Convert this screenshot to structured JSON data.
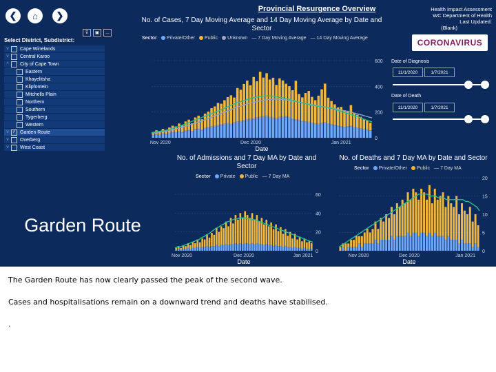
{
  "nav": {
    "back_icon": "back-arrow-icon",
    "home_icon": "home-icon",
    "forward_icon": "forward-arrow-icon",
    "back": "❮",
    "home": "⌂",
    "forward": "❯"
  },
  "header": {
    "title": "Provincial Resurgence Overview",
    "cases_title": "No. of Cases, 7 Day Moving Average and 14 Day Moving Average by Date and Sector",
    "assessment_lines": [
      "Health Impact Assessment",
      "WC Department of Health",
      "Last Updated:",
      "(Blank)"
    ],
    "logo_text": "CORONAVIRUS"
  },
  "slicer": {
    "title": "Select District, Subdistrict:",
    "filter_buttons": [
      "⊽",
      "▣",
      "…"
    ],
    "items": [
      {
        "label": "Cape Winelands",
        "level": 0,
        "checked": false,
        "expanded": false
      },
      {
        "label": "Central Karoo",
        "level": 0,
        "checked": false,
        "expanded": false
      },
      {
        "label": "City of Cape Town",
        "level": 0,
        "checked": false,
        "expanded": true
      },
      {
        "label": "Eastern",
        "level": 1,
        "checked": false
      },
      {
        "label": "Khayelitsha",
        "level": 1,
        "checked": false
      },
      {
        "label": "Klipfontein",
        "level": 1,
        "checked": false
      },
      {
        "label": "Mitchells Plain",
        "level": 1,
        "checked": false
      },
      {
        "label": "Northern",
        "level": 1,
        "checked": false
      },
      {
        "label": "Southern",
        "level": 1,
        "checked": false
      },
      {
        "label": "Tygerberg",
        "level": 1,
        "checked": false
      },
      {
        "label": "Western",
        "level": 1,
        "checked": false
      },
      {
        "label": "Garden Route",
        "level": 0,
        "checked": true,
        "expanded": false
      },
      {
        "label": "Overberg",
        "level": 0,
        "checked": false,
        "expanded": false
      },
      {
        "label": "West Coast",
        "level": 0,
        "checked": false,
        "expanded": false
      }
    ]
  },
  "selected_label": "Garden Route",
  "filters": {
    "diagnosis_label": "Date of Diagnosis",
    "diagnosis_from": "11/1/2020",
    "diagnosis_to": "1/7/2021",
    "death_label": "Date of Death",
    "death_from": "11/1/2020",
    "death_to": "1/7/2021"
  },
  "colors": {
    "background": "#0c2a5c",
    "private": "#6fa8ff",
    "public": "#f0b73a",
    "unknown": "#a3a3c2",
    "ma7": "#2bbf8e",
    "ma14": "#8aa0c8"
  },
  "chart_data": [
    {
      "type": "bar",
      "title": "No. of Cases, 7 Day Moving Average and 14 Day Moving Average by Date and Sector",
      "xlabel": "Date",
      "ylabel": "",
      "legend_title": "Sector",
      "legend": [
        "Private/Other",
        "Public",
        "Unknown",
        "7 Day Moving Average",
        "14 Day Moving Average"
      ],
      "x_ticks": [
        "Nov 2020",
        "Dec 2020",
        "Jan 2021"
      ],
      "y_ticks": [
        0,
        200,
        400,
        600
      ],
      "ylim": [
        0,
        600
      ],
      "private": [
        20,
        25,
        22,
        30,
        28,
        35,
        40,
        38,
        45,
        42,
        50,
        55,
        48,
        60,
        65,
        58,
        70,
        75,
        80,
        85,
        90,
        95,
        100,
        105,
        98,
        110,
        115,
        120,
        125,
        130,
        135,
        140,
        145,
        150,
        155,
        160,
        150,
        145,
        140,
        150,
        155,
        160,
        150,
        140,
        135,
        130,
        125,
        120,
        115,
        110,
        105,
        100,
        110,
        115,
        105,
        100,
        95,
        90,
        85,
        80,
        85,
        90,
        80,
        75,
        70,
        65,
        60,
        55
      ],
      "public": [
        20,
        30,
        25,
        35,
        30,
        40,
        50,
        45,
        60,
        50,
        70,
        80,
        60,
        90,
        100,
        80,
        110,
        120,
        140,
        150,
        170,
        160,
        180,
        200,
        220,
        190,
        260,
        240,
        280,
        300,
        260,
        320,
        280,
        350,
        300,
        330,
        290,
        310,
        260,
        300,
        280,
        250,
        240,
        220,
        300,
        200,
        180,
        220,
        240,
        200,
        180,
        220,
        260,
        300,
        200,
        180,
        160,
        140,
        150,
        130,
        120,
        160,
        110,
        100,
        90,
        80,
        70,
        60
      ],
      "unknown": [
        2,
        3,
        2,
        4,
        3,
        5,
        4,
        5,
        6,
        5,
        7,
        6,
        5,
        8,
        7,
        6,
        8,
        9,
        10,
        9,
        11,
        10,
        12,
        11,
        12,
        13,
        12,
        14,
        13,
        15,
        14,
        13,
        15,
        14,
        13,
        12,
        13,
        12,
        11,
        12,
        11,
        10,
        11,
        10,
        9,
        10,
        9,
        8,
        9,
        8,
        7,
        8,
        7,
        6,
        7,
        6,
        5,
        6,
        5,
        4,
        5,
        4,
        3,
        4,
        3,
        2,
        3,
        2
      ],
      "ma7": [
        40,
        45,
        48,
        52,
        56,
        62,
        70,
        78,
        86,
        95,
        105,
        115,
        125,
        135,
        145,
        155,
        165,
        175,
        185,
        195,
        205,
        215,
        228,
        240,
        252,
        262,
        272,
        280,
        288,
        296,
        304,
        310,
        316,
        320,
        324,
        326,
        325,
        322,
        318,
        314,
        310,
        305,
        298,
        290,
        283,
        276,
        270,
        264,
        258,
        252,
        247,
        242,
        240,
        238,
        232,
        226,
        218,
        210,
        202,
        194,
        186,
        178,
        170,
        160,
        150,
        140,
        132,
        124
      ],
      "ma14": [
        35,
        38,
        42,
        46,
        50,
        54,
        60,
        66,
        72,
        80,
        88,
        96,
        104,
        112,
        120,
        128,
        138,
        148,
        158,
        168,
        178,
        188,
        198,
        208,
        218,
        228,
        238,
        246,
        254,
        262,
        270,
        276,
        282,
        287,
        292,
        296,
        299,
        300,
        300,
        299,
        297,
        294,
        290,
        286,
        281,
        276,
        271,
        266,
        261,
        256,
        251,
        246,
        242,
        238,
        234,
        230,
        225,
        220,
        214,
        208,
        202,
        196,
        190,
        183,
        176,
        169,
        162,
        155
      ]
    },
    {
      "type": "bar",
      "title": "No. of Admissions and 7 Day MA by Date and Sector",
      "xlabel": "Date",
      "legend_title": "Sector",
      "legend": [
        "Private",
        "Public",
        "7 Day MA"
      ],
      "x_ticks": [
        "Nov 2020",
        "Dec 2020",
        "Jan 2021"
      ],
      "y_ticks": [
        0,
        20,
        40,
        60
      ],
      "ylim": [
        0,
        60
      ],
      "private": [
        1,
        2,
        1,
        2,
        2,
        3,
        2,
        3,
        3,
        4,
        3,
        4,
        4,
        5,
        4,
        5,
        5,
        6,
        5,
        6,
        6,
        7,
        6,
        7,
        7,
        8,
        7,
        8,
        7,
        8,
        8,
        7,
        8,
        7,
        8,
        7,
        7,
        6,
        7,
        6,
        6,
        5,
        6,
        5,
        5,
        4,
        5,
        4,
        4,
        3,
        4,
        3,
        3,
        2,
        3,
        2,
        2,
        2
      ],
      "public": [
        2,
        3,
        2,
        4,
        3,
        5,
        4,
        6,
        5,
        8,
        6,
        9,
        8,
        12,
        10,
        14,
        12,
        18,
        15,
        20,
        18,
        24,
        20,
        28,
        22,
        30,
        26,
        32,
        28,
        34,
        30,
        28,
        32,
        26,
        30,
        24,
        28,
        22,
        26,
        20,
        24,
        18,
        22,
        16,
        20,
        14,
        18,
        12,
        16,
        10,
        14,
        9,
        12,
        8,
        10,
        7,
        8,
        6
      ],
      "ma7": [
        3,
        4,
        4,
        5,
        6,
        7,
        8,
        9,
        10,
        11,
        12,
        14,
        15,
        17,
        18,
        20,
        22,
        24,
        25,
        27,
        28,
        30,
        31,
        32,
        33,
        34,
        34,
        35,
        35,
        35,
        34,
        34,
        33,
        33,
        32,
        31,
        30,
        29,
        28,
        27,
        26,
        25,
        24,
        23,
        22,
        21,
        20,
        19,
        18,
        17,
        16,
        15,
        14,
        13,
        12,
        11,
        10,
        9
      ]
    },
    {
      "type": "bar",
      "title": "No. of Deaths and 7 Day MA by Date and Sector",
      "xlabel": "Date",
      "legend_title": "Sector",
      "legend": [
        "Private/Other",
        "Public",
        "7 Day MA"
      ],
      "x_ticks": [
        "Nov 2020",
        "Dec 2020",
        "Jan 2021"
      ],
      "y_ticks": [
        0,
        5,
        10,
        15,
        20
      ],
      "ylim": [
        0,
        20
      ],
      "private": [
        0,
        1,
        0,
        1,
        1,
        1,
        1,
        2,
        1,
        2,
        2,
        2,
        2,
        3,
        2,
        3,
        3,
        3,
        3,
        4,
        3,
        4,
        4,
        4,
        4,
        5,
        4,
        5,
        5,
        4,
        5,
        5,
        4,
        5,
        4,
        5,
        4,
        4,
        4,
        3,
        4,
        3,
        3,
        3,
        2,
        3,
        2,
        2,
        2,
        1,
        2,
        1
      ],
      "public": [
        1,
        1,
        2,
        1,
        2,
        2,
        3,
        2,
        3,
        3,
        4,
        3,
        4,
        5,
        4,
        6,
        5,
        7,
        6,
        8,
        7,
        9,
        8,
        10,
        9,
        11,
        10,
        12,
        11,
        10,
        12,
        11,
        10,
        13,
        9,
        12,
        10,
        11,
        12,
        9,
        11,
        10,
        9,
        12,
        8,
        10,
        9,
        8,
        10,
        7,
        8,
        6
      ],
      "ma7": [
        1,
        1.5,
        2,
        2.5,
        3,
        3.5,
        4,
        4.5,
        5,
        5.5,
        6,
        6.5,
        7,
        7.5,
        8,
        8.5,
        9,
        9.5,
        10,
        10.5,
        11,
        11.5,
        12,
        12.5,
        13,
        13.5,
        14,
        14.5,
        15,
        15.5,
        15.5,
        15.5,
        15.5,
        15,
        15,
        15,
        14.5,
        14.5,
        14.5,
        14,
        14,
        14,
        14,
        14,
        14,
        14,
        13.5,
        13.5,
        13,
        12.5,
        12,
        11
      ]
    }
  ],
  "notes": [
    "The Garden Route has now clearly passed the peak of the second wave.",
    "Cases and hospitalisations remain on a downward trend and deaths have stabilised.",
    "."
  ]
}
